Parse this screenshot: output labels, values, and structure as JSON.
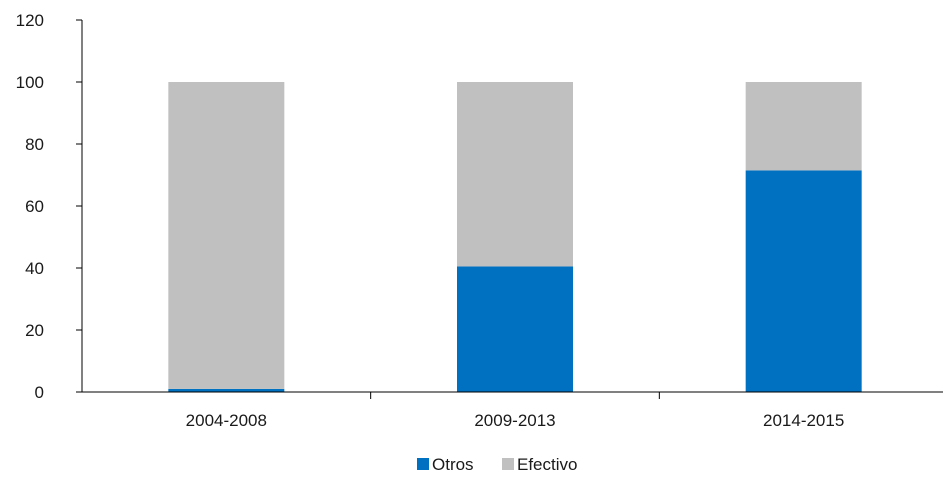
{
  "chart_data": {
    "type": "bar",
    "stacked": true,
    "categories": [
      "2004-2008",
      "2009-2013",
      "2014-2015"
    ],
    "series": [
      {
        "name": "Otros",
        "color": "#0070C0",
        "values": [
          1,
          40.5,
          71.5
        ]
      },
      {
        "name": "Efectivo",
        "color": "#C0C0C0",
        "values": [
          99,
          59.5,
          28.5
        ]
      }
    ],
    "ylim": [
      0,
      120
    ],
    "yticks": [
      0,
      20,
      40,
      60,
      80,
      100,
      120
    ],
    "xlabel": "",
    "ylabel": "",
    "grid": false,
    "legend_position": "bottom"
  }
}
